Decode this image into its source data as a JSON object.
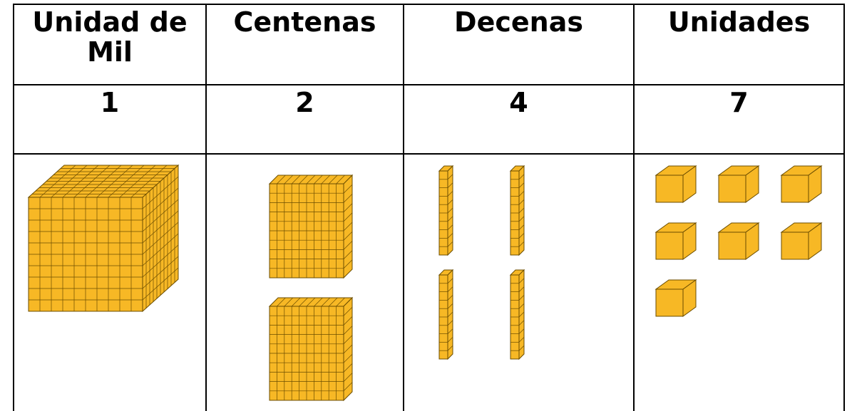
{
  "table": {
    "header": [
      "Unidad de Mil",
      "Centenas",
      "Decenas",
      "Unidades"
    ],
    "rows": [
      [
        1,
        2,
        4,
        7
      ]
    ]
  }
}
